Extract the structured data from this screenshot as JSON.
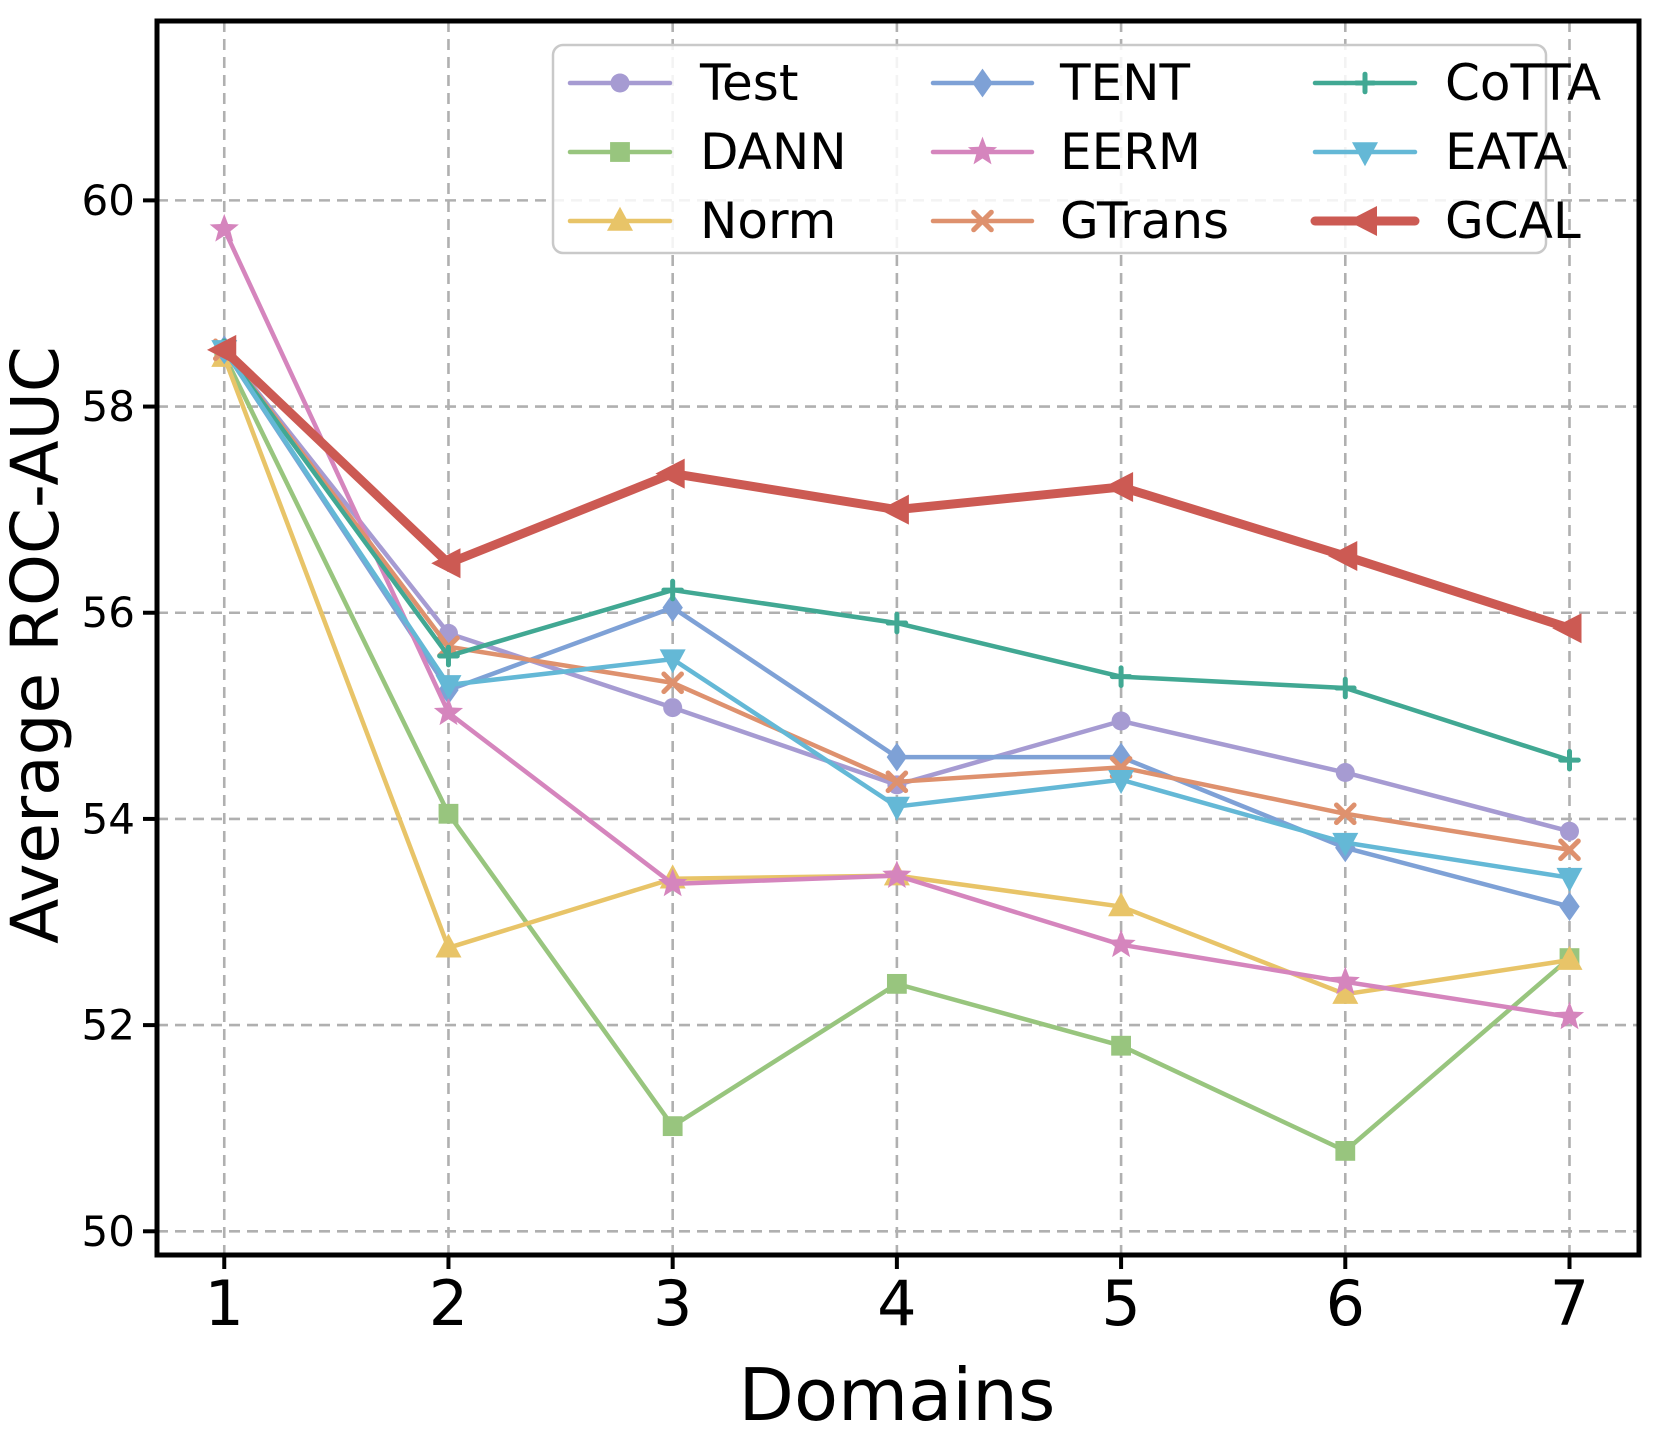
{
  "figure": {
    "background": "#ffffff",
    "grid_color": "#b0b0b0",
    "spine_color": "#000000"
  },
  "chart_data": {
    "type": "line",
    "title": "",
    "xlabel": "Domains",
    "ylabel": "Average ROC-AUC",
    "x": [
      1,
      2,
      3,
      4,
      5,
      6,
      7
    ],
    "xticks": [
      1,
      2,
      3,
      4,
      5,
      6,
      7
    ],
    "yticks": [
      50,
      52,
      54,
      56,
      58,
      60
    ],
    "xlim": [
      0.7,
      7.31
    ],
    "ylim": [
      49.77,
      61.74
    ],
    "grid": true,
    "legend": {
      "position": "upper center",
      "columns": [
        [
          "Test",
          "DANN",
          "Norm"
        ],
        [
          "TENT",
          "EERM",
          "GTrans"
        ],
        [
          "CoTTA",
          "EATA",
          "GCAL"
        ]
      ]
    },
    "series": [
      {
        "name": "Test",
        "color": "#a69bd2",
        "marker": "circle",
        "linewidth": 4.5,
        "markersize": 10,
        "values": [
          58.55,
          55.8,
          55.08,
          54.33,
          54.95,
          54.45,
          53.88
        ]
      },
      {
        "name": "DANN",
        "color": "#98c57e",
        "marker": "square",
        "linewidth": 4.5,
        "markersize": 11,
        "values": [
          58.5,
          54.05,
          51.02,
          52.4,
          51.8,
          50.78,
          52.65
        ]
      },
      {
        "name": "Norm",
        "color": "#e8c468",
        "marker": "triangle-up",
        "linewidth": 4.5,
        "markersize": 13,
        "values": [
          58.48,
          52.75,
          53.42,
          53.45,
          53.15,
          52.3,
          52.63
        ]
      },
      {
        "name": "TENT",
        "color": "#7ea1d6",
        "marker": "diamond",
        "linewidth": 4.5,
        "markersize": 12,
        "values": [
          58.55,
          55.25,
          56.05,
          54.6,
          54.6,
          53.72,
          53.15
        ]
      },
      {
        "name": "EERM",
        "color": "#d585bd",
        "marker": "star",
        "linewidth": 4.5,
        "markersize": 13,
        "values": [
          59.72,
          55.03,
          53.37,
          53.45,
          52.78,
          52.42,
          52.08
        ]
      },
      {
        "name": "GTrans",
        "color": "#de916e",
        "marker": "x",
        "linewidth": 4.5,
        "markersize": 11,
        "values": [
          58.55,
          55.67,
          55.32,
          54.36,
          54.5,
          54.05,
          53.7
        ]
      },
      {
        "name": "CoTTA",
        "color": "#41a893",
        "marker": "plus",
        "linewidth": 4.5,
        "markersize": 11,
        "values": [
          58.55,
          55.58,
          56.22,
          55.9,
          55.38,
          55.27,
          54.57
        ]
      },
      {
        "name": "EATA",
        "color": "#64b8d6",
        "marker": "triangle-down",
        "linewidth": 4.5,
        "markersize": 13,
        "values": [
          58.55,
          55.3,
          55.55,
          54.12,
          54.38,
          53.77,
          53.43
        ]
      },
      {
        "name": "GCAL",
        "color": "#cc5a53",
        "marker": "triangle-left",
        "linewidth": 9,
        "markersize": 15,
        "values": [
          58.55,
          56.48,
          57.35,
          57.0,
          57.22,
          56.55,
          55.85
        ]
      }
    ]
  }
}
